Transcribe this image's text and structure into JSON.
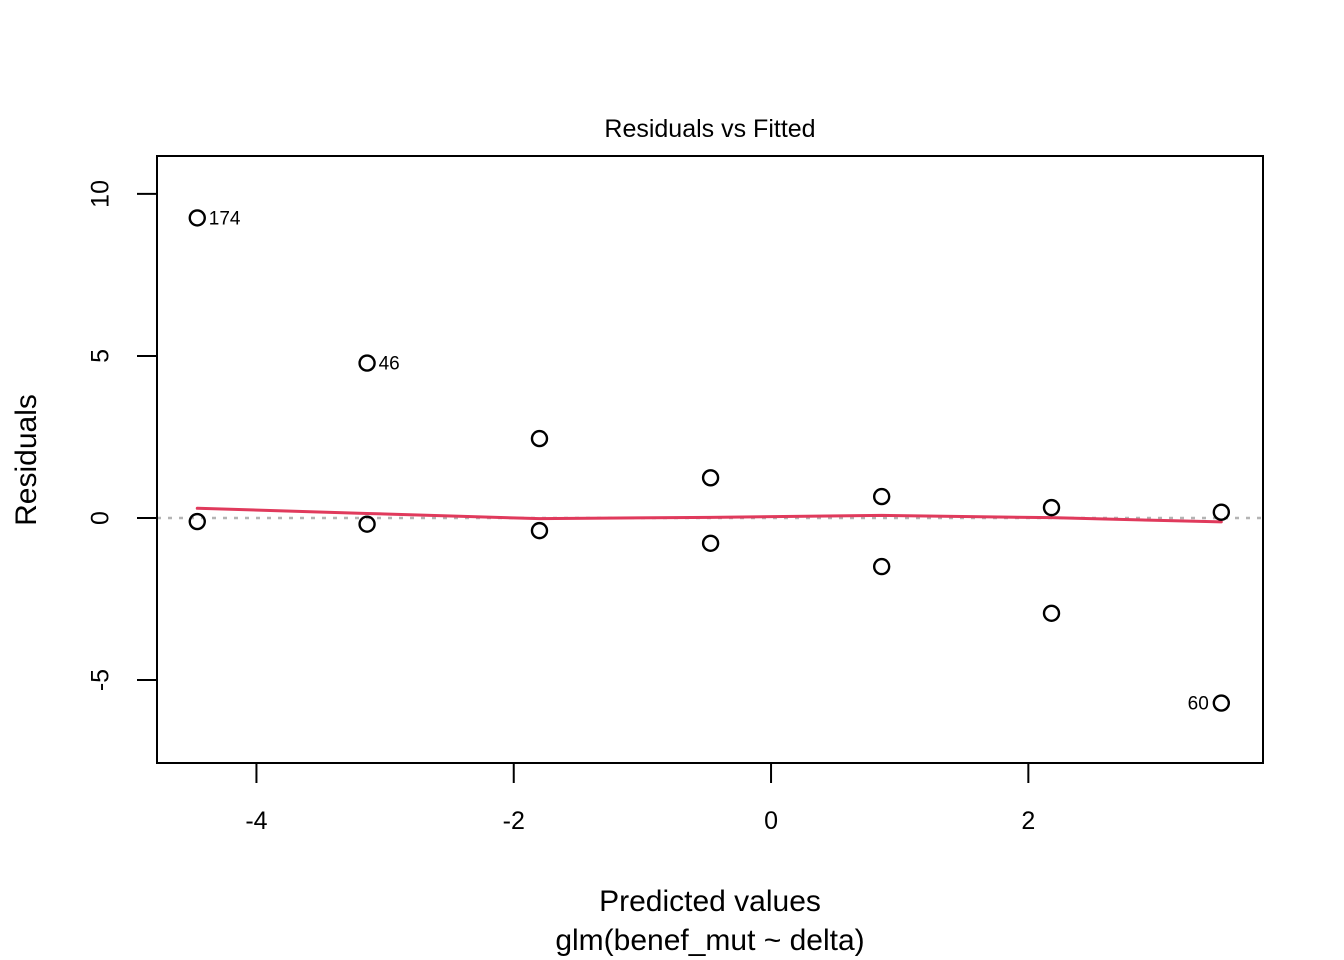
{
  "window": {
    "background": "#ffffff"
  },
  "chart_data": {
    "type": "scatter",
    "title": "Residuals vs Fitted",
    "xlabel": "Predicted values",
    "xlabel_sub": "glm(benef_mut ~ delta)",
    "ylabel": "Residuals",
    "xlim": [
      -4.773,
      3.824
    ],
    "ylim": [
      -7.56,
      11.17
    ],
    "xticks": [
      -4,
      -2,
      0,
      2
    ],
    "xtick_labels": [
      "-4",
      "-2",
      "0",
      "2"
    ],
    "yticks": [
      -5,
      0,
      5,
      10
    ],
    "ytick_labels": [
      "-5",
      "0",
      "5",
      "10"
    ],
    "grid": false,
    "legend": false,
    "zero_line_y": 0,
    "points": [
      {
        "x": -4.46,
        "y": 9.26,
        "label": "174",
        "label_side": "right"
      },
      {
        "x": -3.14,
        "y": 4.78,
        "label": "46",
        "label_side": "right"
      },
      {
        "x": -1.8,
        "y": 2.45
      },
      {
        "x": -0.47,
        "y": 1.24
      },
      {
        "x": 0.86,
        "y": 0.66
      },
      {
        "x": 2.18,
        "y": 0.32
      },
      {
        "x": 3.5,
        "y": 0.18
      },
      {
        "x": -4.46,
        "y": -0.11
      },
      {
        "x": -3.14,
        "y": -0.19
      },
      {
        "x": -1.8,
        "y": -0.39
      },
      {
        "x": -0.47,
        "y": -0.78
      },
      {
        "x": 0.86,
        "y": -1.5
      },
      {
        "x": 2.18,
        "y": -2.94
      },
      {
        "x": 3.5,
        "y": -5.71,
        "label": "60",
        "label_side": "left"
      }
    ],
    "smoother": [
      [
        -4.46,
        0.3
      ],
      [
        -3.14,
        0.14
      ],
      [
        -1.8,
        -0.02
      ],
      [
        -0.47,
        0.02
      ],
      [
        0.86,
        0.08
      ],
      [
        2.18,
        0.01
      ],
      [
        3.5,
        -0.12
      ]
    ],
    "colors": {
      "smoother_line": "#e03a5c",
      "zero_line": "#b4b4b4",
      "point_stroke": "#000000",
      "axis": "#000000"
    }
  }
}
